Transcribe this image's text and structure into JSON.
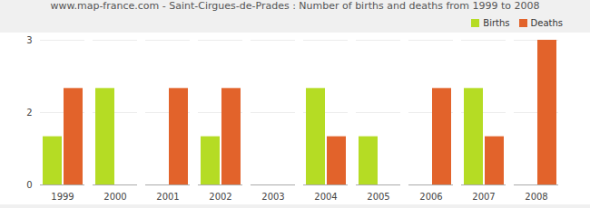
{
  "chart_data": {
    "type": "bar",
    "title": "www.map-france.com - Saint-Cirgues-de-Prades : Number of births and deaths from 1999 to 2008",
    "categories": [
      "1999",
      "2000",
      "2001",
      "2002",
      "2003",
      "2004",
      "2005",
      "2006",
      "2007",
      "2008"
    ],
    "series": [
      {
        "name": "Births",
        "color": "#b5dc24",
        "values": [
          1,
          2,
          0,
          1,
          0,
          2,
          1,
          0,
          2,
          0
        ]
      },
      {
        "name": "Deaths",
        "color": "#e2632b",
        "values": [
          2,
          0,
          2,
          2,
          0,
          1,
          0,
          2,
          1,
          3
        ]
      }
    ],
    "ylim": [
      0,
      3
    ],
    "yticks": [
      0,
      {
        "value": 1.5,
        "label": "2"
      },
      3
    ],
    "grid": true,
    "legend": "top-right"
  }
}
